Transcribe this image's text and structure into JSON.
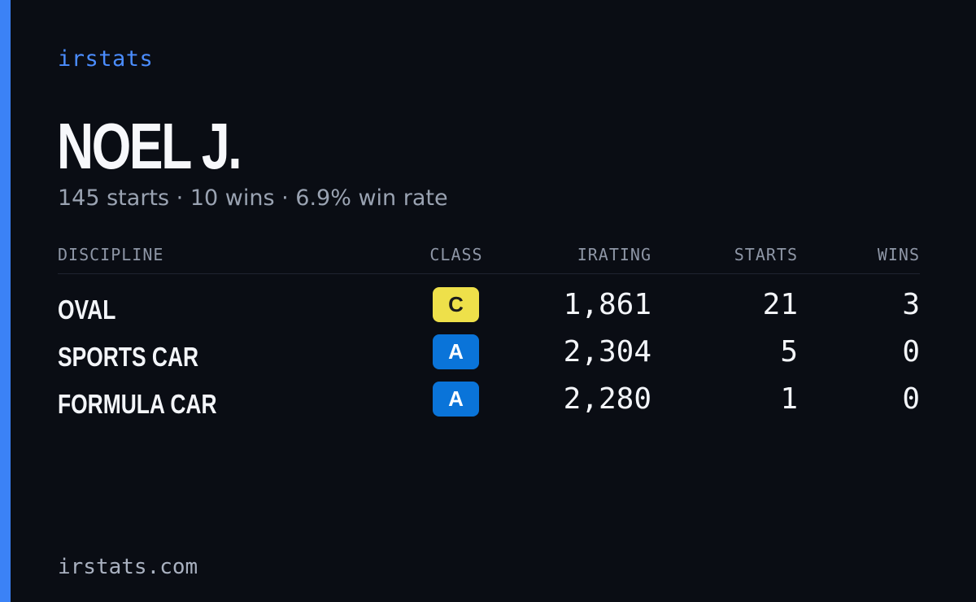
{
  "brand": "irstats",
  "player": {
    "name": "NOEL J.",
    "summary": "145 starts · 10 wins · 6.9% win rate"
  },
  "table": {
    "headers": {
      "discipline": "DISCIPLINE",
      "class": "CLASS",
      "irating": "IRATING",
      "starts": "STARTS",
      "wins": "WINS"
    },
    "rows": [
      {
        "discipline": "OVAL",
        "class": "C",
        "class_color": "#eee04a",
        "irating": "1,861",
        "starts": "21",
        "wins": "3"
      },
      {
        "discipline": "SPORTS CAR",
        "class": "A",
        "class_color": "#0a74d9",
        "irating": "2,304",
        "starts": "5",
        "wins": "0"
      },
      {
        "discipline": "FORMULA CAR",
        "class": "A",
        "class_color": "#0a74d9",
        "irating": "2,280",
        "starts": "1",
        "wins": "0"
      }
    ]
  },
  "footer": "irstats.com",
  "colors": {
    "accent": "#3b82f6",
    "background": "#0a0d14",
    "brand": "#4b8dff"
  }
}
